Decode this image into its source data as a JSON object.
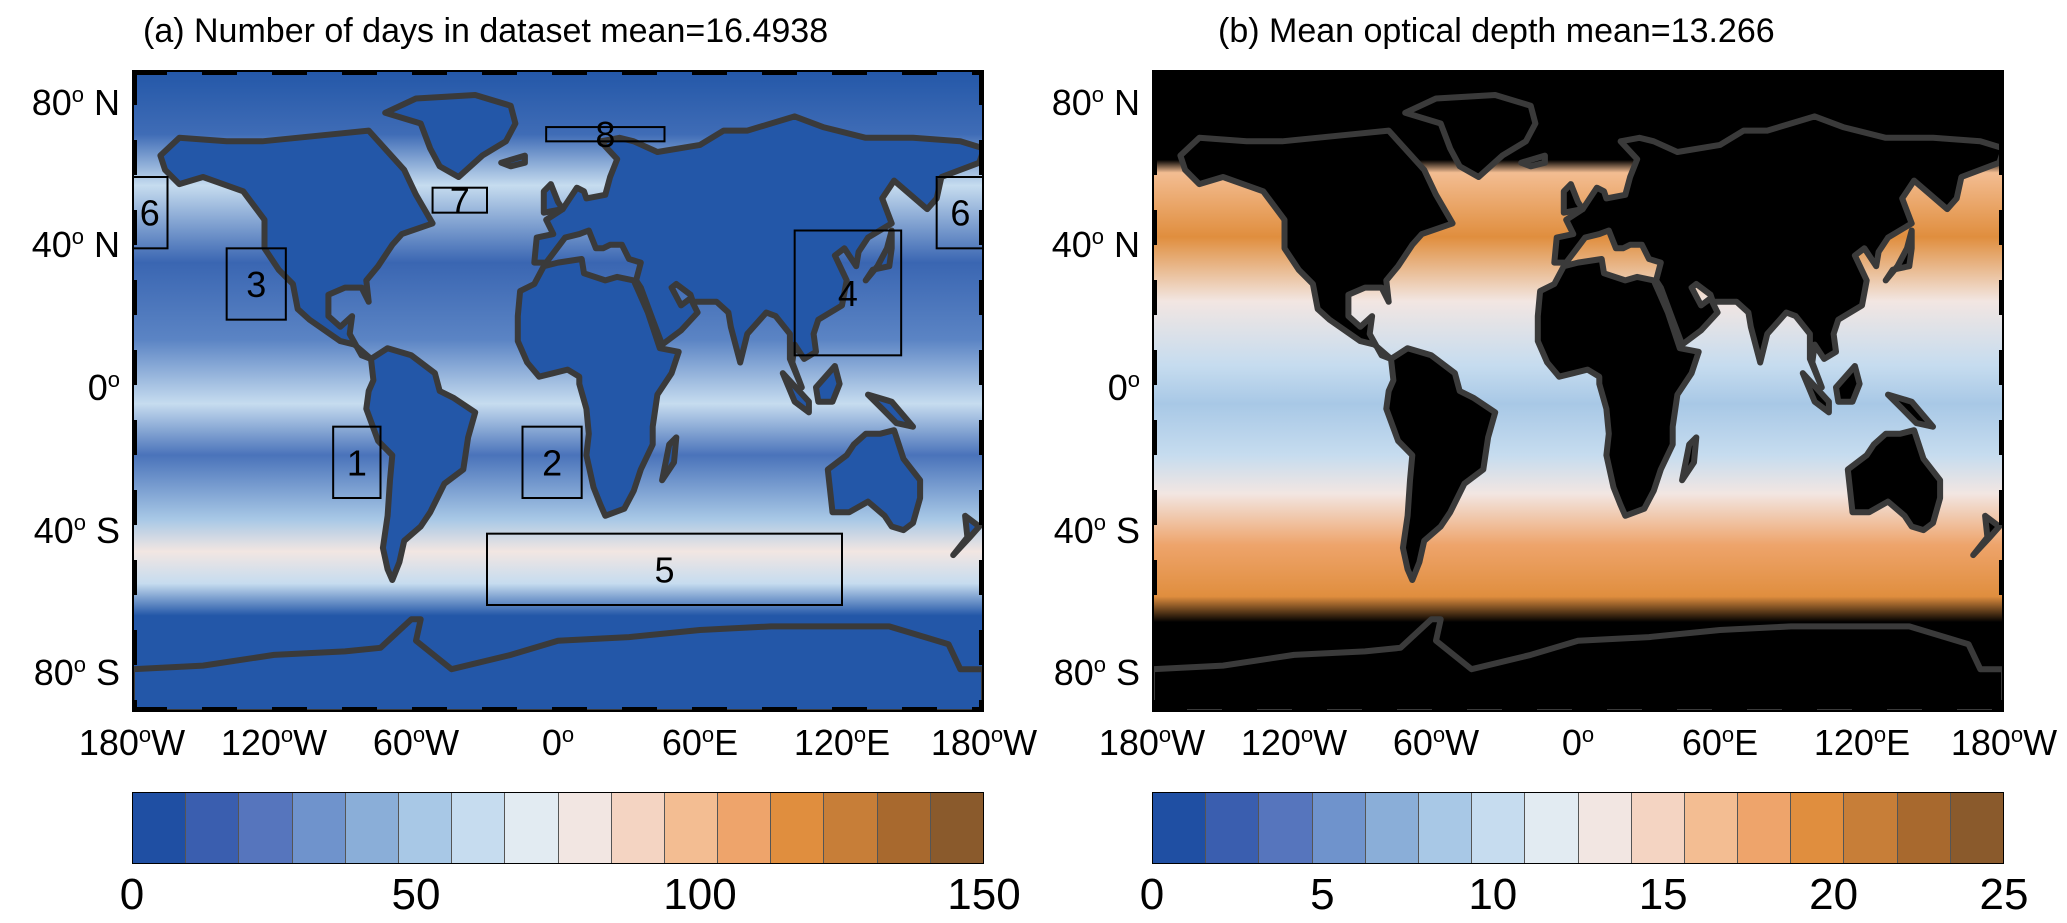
{
  "panel_a": {
    "title": "(a)  Number of days in dataset  mean=16.4938",
    "lat_ticks": [
      {
        "deg": "80",
        "hemi": "N",
        "lat": 80
      },
      {
        "deg": "40",
        "hemi": "N",
        "lat": 40
      },
      {
        "deg": "0",
        "hemi": "",
        "lat": 0
      },
      {
        "deg": "40",
        "hemi": "S",
        "lat": -40
      },
      {
        "deg": "80",
        "hemi": "S",
        "lat": -80
      }
    ],
    "lon_ticks": [
      {
        "deg": "180",
        "hemi": "W",
        "lon": -180
      },
      {
        "deg": "120",
        "hemi": "W",
        "lon": -120
      },
      {
        "deg": "60",
        "hemi": "W",
        "lon": -60
      },
      {
        "deg": "0",
        "hemi": "",
        "lon": 0
      },
      {
        "deg": "60",
        "hemi": "E",
        "lon": 60
      },
      {
        "deg": "120",
        "hemi": "E",
        "lon": 120
      },
      {
        "deg": "180",
        "hemi": "W",
        "lon": 180
      }
    ],
    "regions": [
      {
        "label": "1",
        "lon": [
          -95,
          -75
        ],
        "lat": [
          -30,
          -10
        ]
      },
      {
        "label": "2",
        "lon": [
          -15,
          10
        ],
        "lat": [
          -30,
          -10
        ]
      },
      {
        "label": "3",
        "lon": [
          -140,
          -115
        ],
        "lat": [
          20,
          40
        ]
      },
      {
        "label": "4",
        "lon": [
          100,
          145
        ],
        "lat": [
          10,
          45
        ]
      },
      {
        "label": "5",
        "lon": [
          -30,
          120
        ],
        "lat": [
          -60,
          -40
        ]
      },
      {
        "label": "6",
        "lon": [
          -180,
          -165
        ],
        "lat": [
          40,
          60
        ]
      },
      {
        "label": "6",
        "lon": [
          160,
          180
        ],
        "lat": [
          40,
          60
        ]
      },
      {
        "label": "7",
        "lon": [
          -53,
          -30
        ],
        "lat": [
          50,
          57
        ]
      },
      {
        "label": "8",
        "lon": [
          -5,
          45
        ],
        "lat": [
          70,
          74
        ]
      }
    ],
    "colorbar": {
      "ticks": [
        "0",
        "50",
        "100",
        "150"
      ],
      "min": 0,
      "max": 150
    }
  },
  "panel_b": {
    "title": "(b)  Mean optical depth  mean=13.266",
    "lat_ticks": [
      {
        "deg": "80",
        "hemi": "N",
        "lat": 80
      },
      {
        "deg": "40",
        "hemi": "N",
        "lat": 40
      },
      {
        "deg": "0",
        "hemi": "",
        "lat": 0
      },
      {
        "deg": "40",
        "hemi": "S",
        "lat": -40
      },
      {
        "deg": "80",
        "hemi": "S",
        "lat": -80
      }
    ],
    "lon_ticks": [
      {
        "deg": "180",
        "hemi": "W",
        "lon": -180
      },
      {
        "deg": "120",
        "hemi": "W",
        "lon": -120
      },
      {
        "deg": "60",
        "hemi": "W",
        "lon": -60
      },
      {
        "deg": "0",
        "hemi": "",
        "lon": 0
      },
      {
        "deg": "60",
        "hemi": "E",
        "lon": 60
      },
      {
        "deg": "120",
        "hemi": "E",
        "lon": 120
      },
      {
        "deg": "180",
        "hemi": "W",
        "lon": 180
      }
    ],
    "colorbar": {
      "ticks": [
        "0",
        "5",
        "10",
        "15",
        "20",
        "25"
      ],
      "min": 0,
      "max": 25
    }
  },
  "colors": {
    "palette": [
      "#1f4fa3",
      "#3a5eaf",
      "#5675bd",
      "#6f93cc",
      "#8aaed8",
      "#a8c8e6",
      "#c6dcef",
      "#e2ebf2",
      "#f2e6e2",
      "#f4d4c2",
      "#f3bd92",
      "#eea46b",
      "#e08e3e",
      "#c77e38",
      "#a8692e",
      "#8a5a2c"
    ],
    "land_a": "#2357a8",
    "land_b": "#000000",
    "coastline": "#3a3a3a"
  }
}
